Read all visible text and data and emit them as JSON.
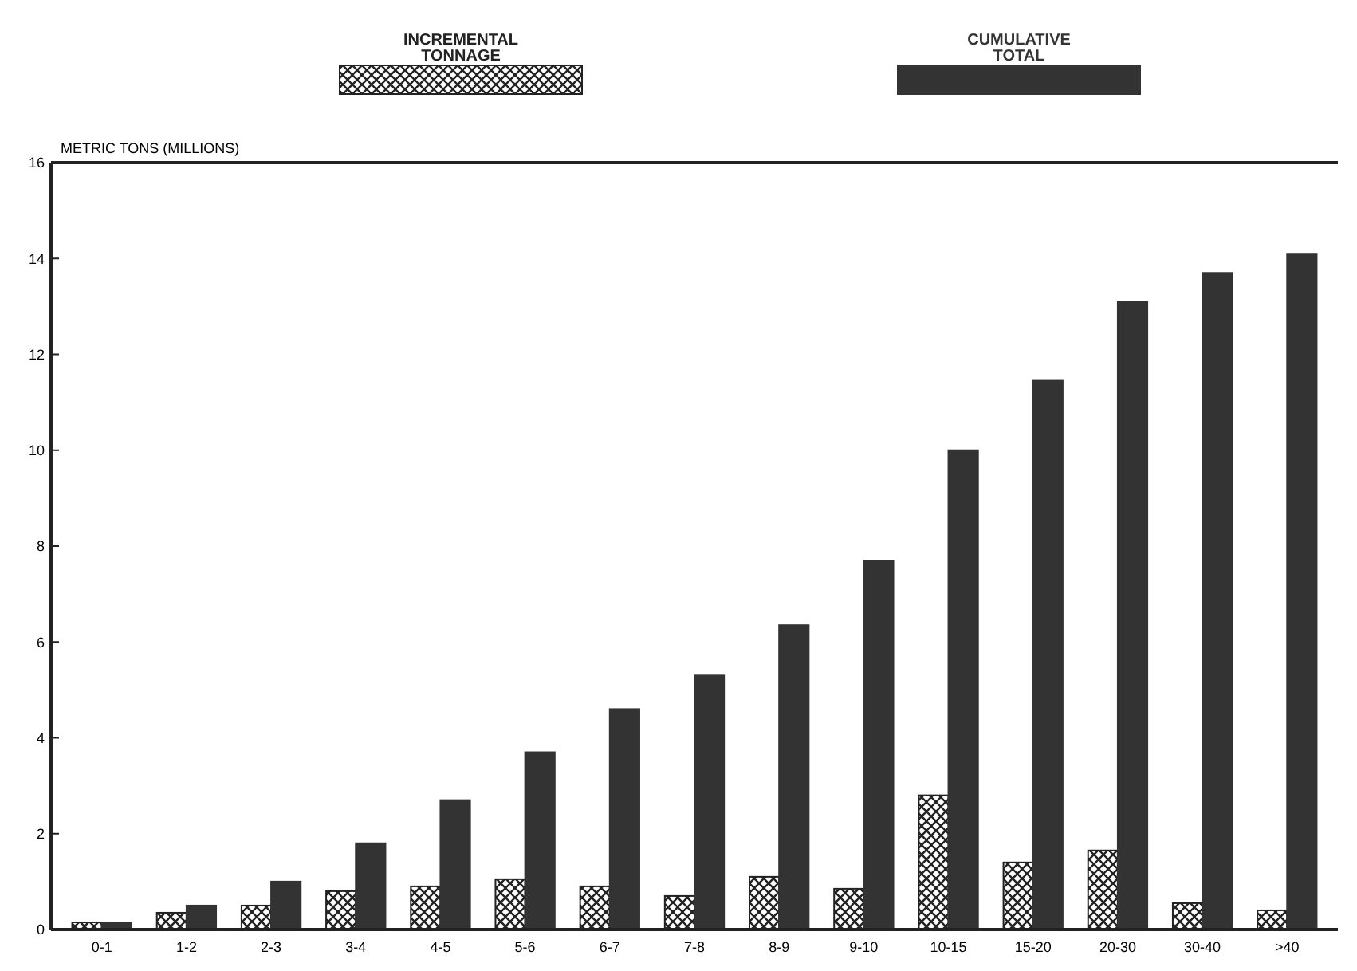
{
  "chart_data": {
    "type": "bar",
    "ylabel": "METRIC TONS (MILLIONS)",
    "categories": [
      "0-1",
      "1-2",
      "2-3",
      "3-4",
      "4-5",
      "5-6",
      "6-7",
      "7-8",
      "8-9",
      "9-10",
      "10-15",
      "15-20",
      "20-30",
      "30-40",
      ">40"
    ],
    "series": [
      {
        "name": "INCREMENTAL TONNAGE",
        "color": "#222222",
        "values": [
          0.15,
          0.35,
          0.5,
          0.8,
          0.9,
          1.05,
          0.9,
          0.7,
          1.1,
          0.85,
          2.8,
          1.4,
          1.65,
          0.55,
          0.4
        ]
      },
      {
        "name": "CUMULATIVE TOTAL",
        "color": "#333333",
        "values": [
          0.15,
          0.5,
          1.0,
          1.8,
          2.7,
          3.7,
          4.6,
          5.3,
          6.35,
          7.7,
          10.0,
          11.45,
          13.1,
          13.7,
          14.1
        ]
      }
    ],
    "ylim": [
      0,
      16
    ],
    "yticks": [
      0,
      2,
      4,
      6,
      8,
      10,
      12,
      14,
      16
    ],
    "grid": false,
    "legend": "top"
  }
}
